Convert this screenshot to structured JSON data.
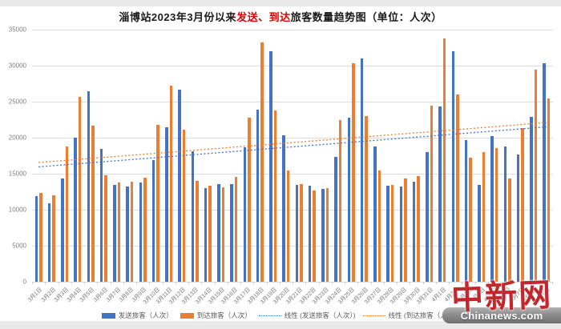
{
  "title": {
    "prefix": "淄博站2023年3月份以来",
    "highlight": "发送、到达",
    "suffix": "旅客数量趋势图（单位：人次）"
  },
  "colors": {
    "send": "#4472C4",
    "arrive": "#ED7D31",
    "grid": "#DCDCDC",
    "axis_text": "#7F7F7F",
    "title_highlight": "#E00000",
    "watermark_red": "#C1272D"
  },
  "legend": [
    {
      "label": "发送旅客（人次）",
      "type": "bar",
      "color": "#4472C4"
    },
    {
      "label": "到达旅客（人次）",
      "type": "bar",
      "color": "#ED7D31"
    },
    {
      "label": "线性 (发送旅客（人次）)",
      "type": "line",
      "color": "#4472C4"
    },
    {
      "label": "线性 (到达旅客（人次）)",
      "type": "line",
      "color": "#ED7D31"
    }
  ],
  "watermark": {
    "logo": "中新网",
    "site": "Chinanews.com"
  },
  "chart_data": {
    "type": "bar",
    "title": "淄博站2023年3月份以来发送、到达旅客数量趋势图（单位：人次）",
    "categories": [
      "3月1日",
      "3月2日",
      "3月3日",
      "3月4日",
      "3月5日",
      "3月6日",
      "3月7日",
      "3月8日",
      "3月9日",
      "3月10日",
      "3月11日",
      "3月12日",
      "3月13日",
      "3月14日",
      "3月15日",
      "3月16日",
      "3月17日",
      "3月18日",
      "3月19日",
      "3月20日",
      "3月21日",
      "3月22日",
      "3月23日",
      "3月24日",
      "3月25日",
      "3月26日",
      "3月27日",
      "3月28日",
      "3月29日",
      "3月30日",
      "3月31日",
      "4月1日",
      "4月2日",
      "4月3日",
      "4月4日",
      "4月5日",
      "4月6日",
      "4月7日",
      "4月8日",
      "4月9日"
    ],
    "series": [
      {
        "name": "发送旅客（人次）",
        "color": "#4472C4",
        "values": [
          11900,
          10900,
          14300,
          20000,
          26500,
          18500,
          13500,
          13250,
          13750,
          16900,
          21400,
          26700,
          18100,
          13000,
          13550,
          13550,
          18650,
          23850,
          32050,
          20350,
          13450,
          13350,
          12900,
          17350,
          22750,
          31050,
          18750,
          13350,
          13250,
          13850,
          18050,
          24350,
          32000,
          19650,
          13500,
          20200,
          18800,
          17650,
          22900,
          30300
        ]
      },
      {
        "name": "到达旅客（人次）",
        "color": "#ED7D31",
        "values": [
          12300,
          12000,
          18800,
          25700,
          21700,
          14800,
          13750,
          13900,
          14500,
          21800,
          27250,
          21150,
          14000,
          13350,
          13100,
          14550,
          22800,
          33250,
          23750,
          15400,
          13550,
          12650,
          13050,
          22500,
          30300,
          23000,
          15400,
          13450,
          14350,
          14650,
          24500,
          33750,
          26050,
          17250,
          18050,
          18550,
          14350,
          21350,
          29400,
          25400
        ]
      }
    ],
    "trendlines": [
      {
        "name": "线性 (发送旅客（人次）)",
        "color": "#4472C4",
        "start": 15950,
        "end": 21500
      },
      {
        "name": "线性 (到达旅客（人次）)",
        "color": "#ED7D31",
        "start": 16550,
        "end": 22100
      }
    ],
    "ylim": [
      0,
      35000
    ],
    "ytick_step": 5000,
    "grid": true,
    "legend_position": "bottom"
  }
}
